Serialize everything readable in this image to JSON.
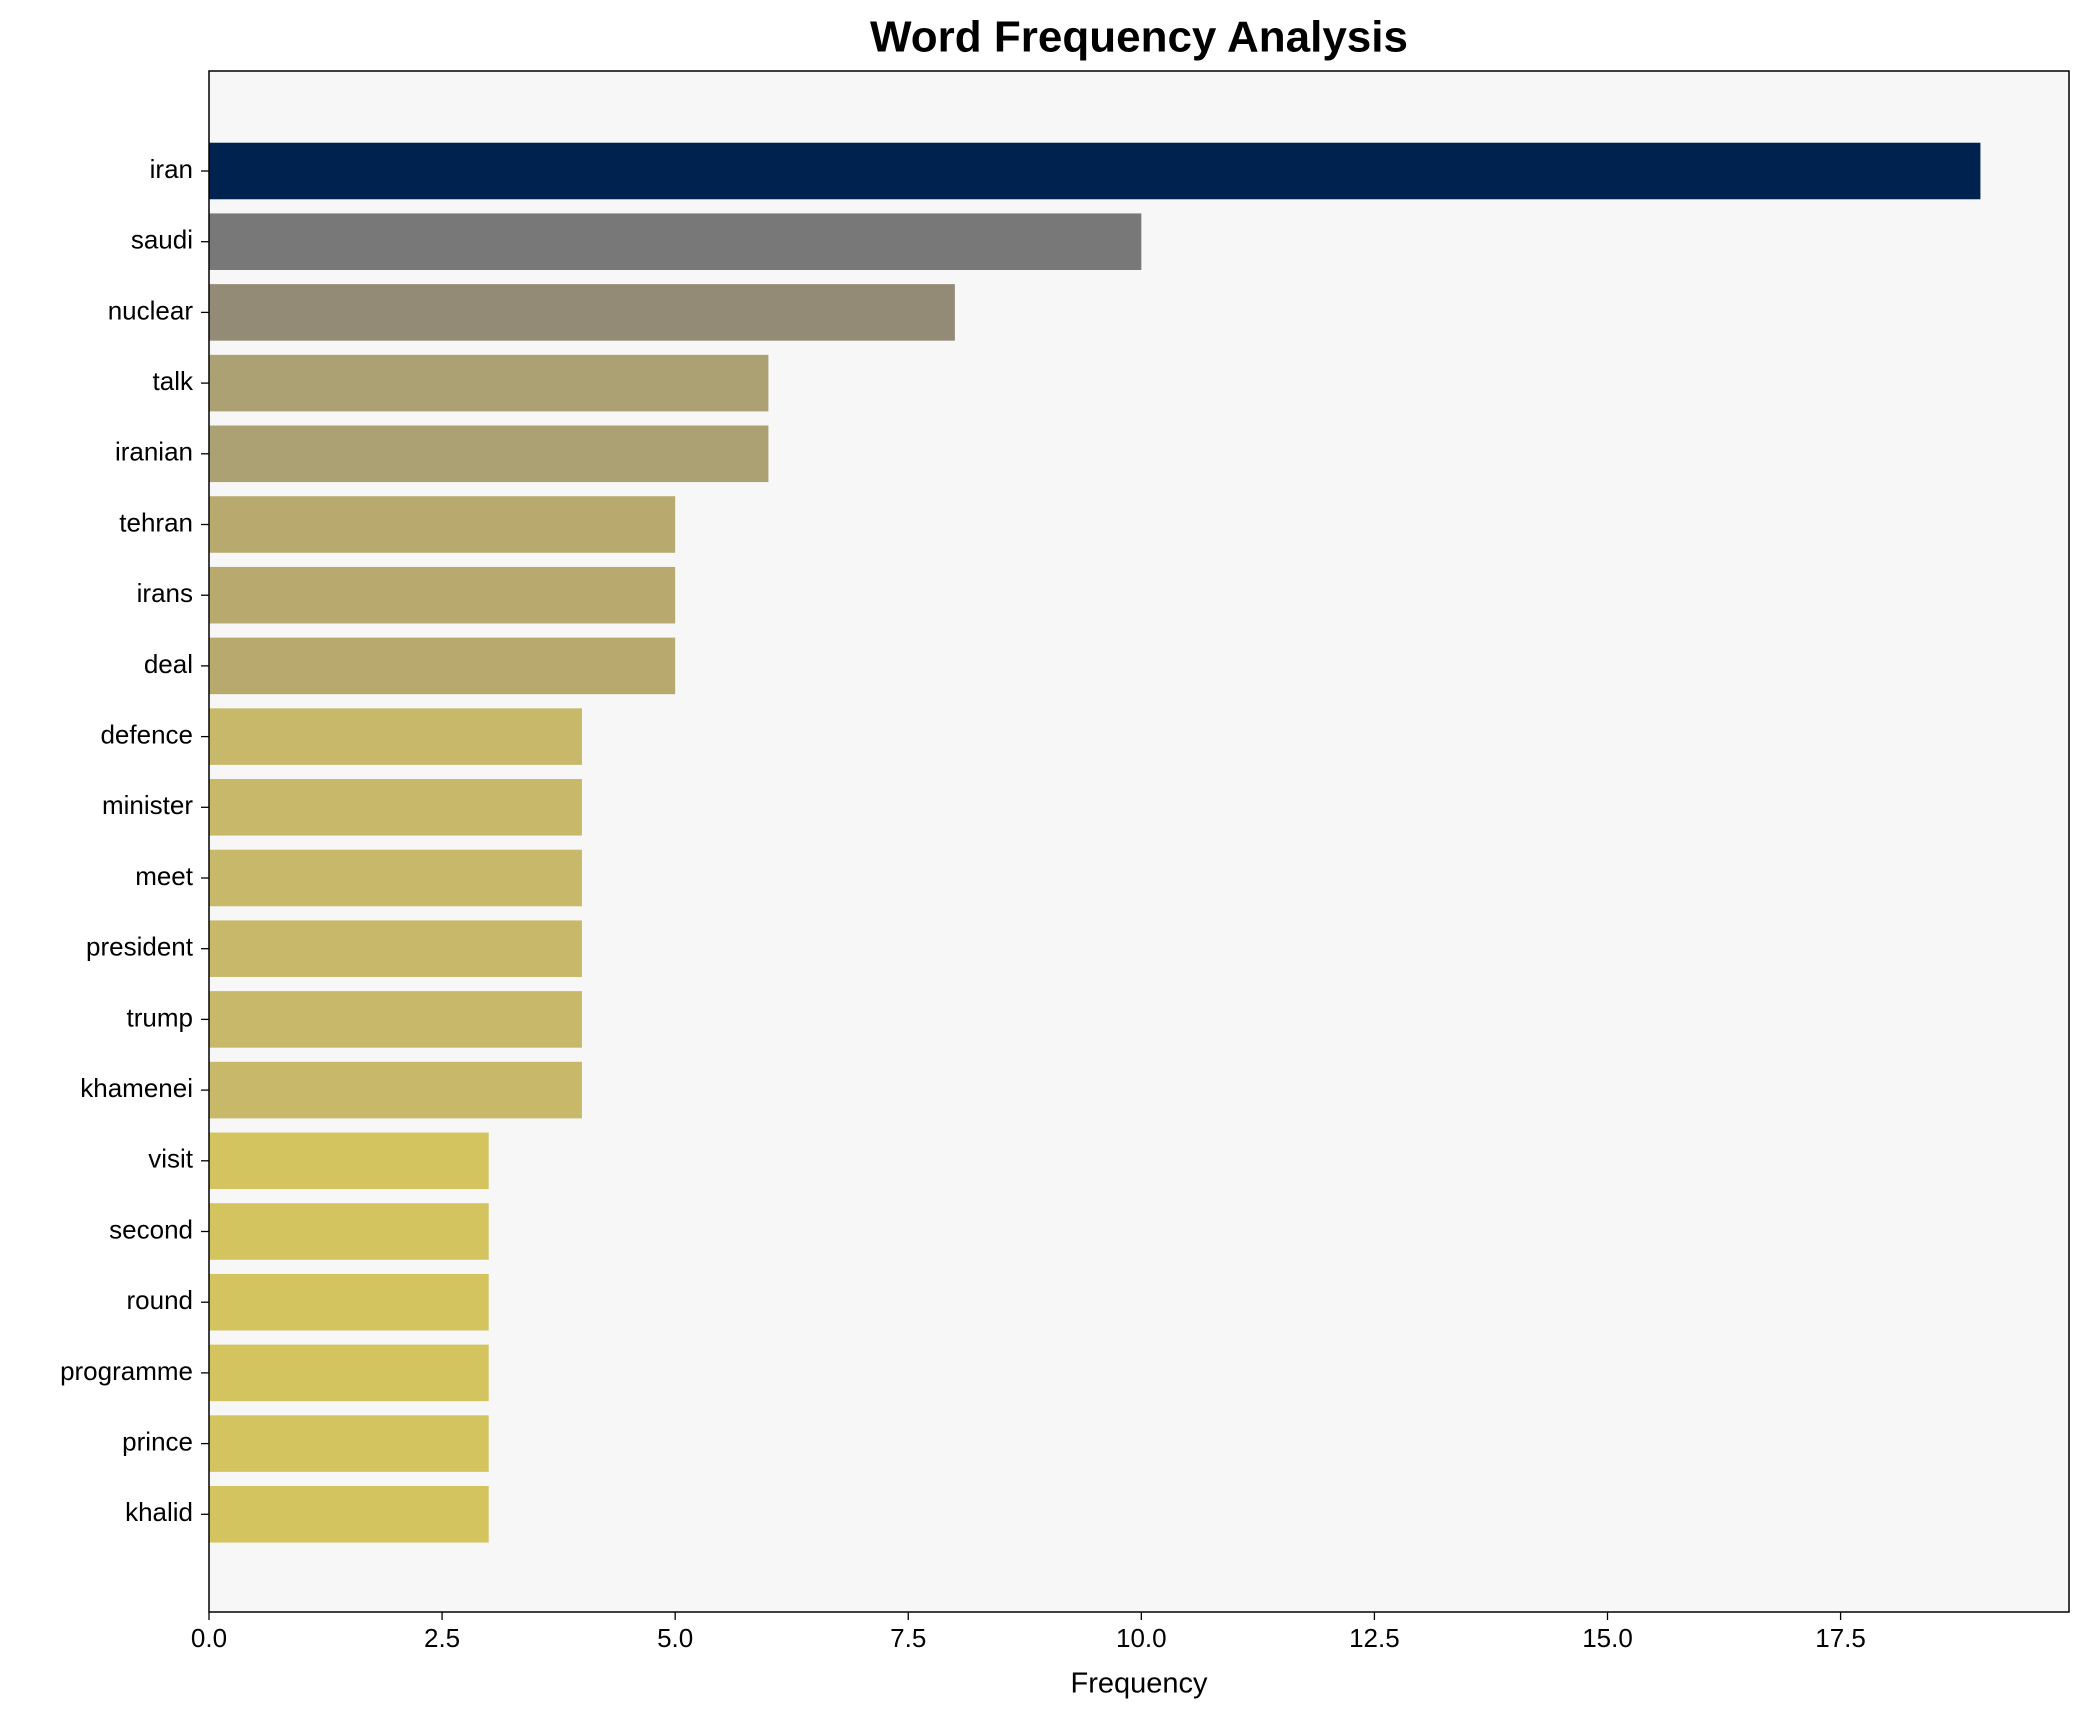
{
  "chart_data": {
    "type": "barh",
    "title": "Word Frequency Analysis",
    "xlabel": "Frequency",
    "categories": [
      "iran",
      "saudi",
      "nuclear",
      "talk",
      "iranian",
      "tehran",
      "irans",
      "deal",
      "defence",
      "minister",
      "meet",
      "president",
      "trump",
      "khamenei",
      "visit",
      "second",
      "round",
      "programme",
      "prince",
      "khalid"
    ],
    "values": [
      19,
      10,
      8,
      6,
      6,
      5,
      5,
      5,
      4,
      4,
      4,
      4,
      4,
      4,
      3,
      3,
      3,
      3,
      3,
      3
    ],
    "colors": [
      "#00224e",
      "#787878",
      "#948b76",
      "#aca172",
      "#aca172",
      "#b8aa6f",
      "#b8aa6f",
      "#b8aa6f",
      "#c7b969",
      "#c7b969",
      "#c7b969",
      "#c7b969",
      "#c7b969",
      "#c7b969",
      "#d4c45f",
      "#d4c45f",
      "#d4c45f",
      "#d4c45f",
      "#d4c45f",
      "#d4c45f"
    ],
    "xlim": [
      0,
      19.95
    ],
    "xticks": [
      {
        "value": 0,
        "label": "0.0"
      },
      {
        "value": 2.5,
        "label": "2.5"
      },
      {
        "value": 5,
        "label": "5.0"
      },
      {
        "value": 7.5,
        "label": "7.5"
      },
      {
        "value": 10,
        "label": "10.0"
      },
      {
        "value": 12.5,
        "label": "12.5"
      },
      {
        "value": 15,
        "label": "15.0"
      },
      {
        "value": 17.5,
        "label": "17.5"
      }
    ]
  }
}
